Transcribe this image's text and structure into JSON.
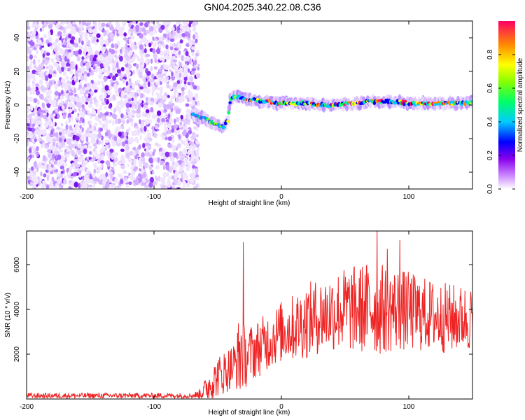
{
  "title": "GN04.2025.340.22.08.C36",
  "chart_data": [
    {
      "type": "heatmap",
      "xlabel": "Height of straight line (km)",
      "ylabel": "Frequency (Hz)",
      "xlim": [
        -200,
        150
      ],
      "ylim": [
        -50,
        50
      ],
      "xticks": [
        -200,
        -100,
        0,
        100
      ],
      "yticks": [
        -40,
        -20,
        0,
        20,
        40
      ],
      "noise_region_x": [
        -200,
        -65
      ],
      "signal_track": {
        "x": [
          -70,
          -65,
          -60,
          -55,
          -50,
          -45,
          -42,
          -40,
          -38,
          -36,
          -34,
          -30,
          -25,
          -20,
          -15,
          -10,
          -5,
          0,
          10,
          20,
          30,
          40,
          50,
          60,
          70,
          80,
          90,
          100,
          110,
          120,
          130,
          140,
          150
        ],
        "freq": [
          -6,
          -7,
          -8,
          -10,
          -12,
          -13,
          -9,
          3,
          5,
          5,
          5,
          4,
          3,
          3,
          2,
          2,
          1,
          1,
          1,
          1,
          0,
          0,
          1,
          1,
          2,
          2,
          2,
          1,
          1,
          1,
          1,
          1,
          2
        ]
      },
      "colorbar": {
        "label": "Normalized spectral amplitude",
        "range": [
          0.0,
          1.0
        ],
        "ticks": [
          "0.0",
          "0.2",
          "0.4",
          "0.6",
          "0.8"
        ]
      }
    },
    {
      "type": "line",
      "xlabel": "Height of straight line (km)",
      "ylabel": "SNR (10 * v/v)",
      "xlim": [
        -200,
        150
      ],
      "ylim": [
        0,
        7500
      ],
      "xticks": [
        -200,
        -100,
        0,
        100
      ],
      "yticks": [
        2000,
        4000,
        6000
      ],
      "color": "#ee2222",
      "envelope": {
        "x": [
          -200,
          -70,
          -65,
          -60,
          -55,
          -50,
          -45,
          -40,
          -35,
          -32,
          -30,
          -28,
          -25,
          -20,
          -15,
          -10,
          -5,
          0,
          10,
          20,
          30,
          40,
          50,
          60,
          70,
          75,
          80,
          90,
          100,
          110,
          120,
          130,
          140,
          150
        ],
        "mean": [
          150,
          150,
          200,
          400,
          700,
          1000,
          1200,
          1400,
          1600,
          2200,
          2000,
          1800,
          2000,
          2200,
          2400,
          2600,
          2800,
          3000,
          3200,
          3500,
          3700,
          3900,
          4000,
          4000,
          4100,
          4100,
          4000,
          4000,
          3900,
          3800,
          3700,
          3600,
          3600,
          3600
        ],
        "amplitude": [
          120,
          120,
          200,
          500,
          800,
          900,
          1000,
          1000,
          1200,
          2500,
          1500,
          1300,
          1300,
          1300,
          1300,
          1300,
          1300,
          1400,
          1500,
          1700,
          1700,
          1800,
          1900,
          2000,
          2100,
          2200,
          2000,
          1900,
          1800,
          1700,
          1600,
          1600,
          1500,
          1500
        ]
      },
      "peaks": [
        {
          "x": -30,
          "y": 7000
        },
        {
          "x": 75,
          "y": 7500
        },
        {
          "x": 93,
          "y": 7100
        },
        {
          "x": 83,
          "y": 6700
        }
      ]
    }
  ]
}
